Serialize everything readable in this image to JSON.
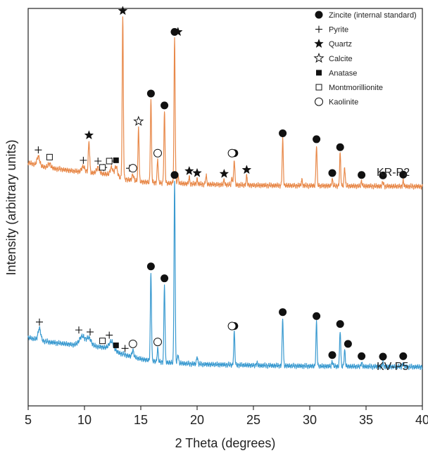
{
  "chart_data": {
    "type": "line",
    "title": "",
    "xlabel": "2 Theta (degrees)",
    "ylabel": "Intensity (arbitrary units)",
    "xlim": [
      5,
      40
    ],
    "ylim": [
      0,
      100
    ],
    "x_ticks": [
      "5",
      "10",
      "15",
      "20",
      "25",
      "30",
      "35",
      "40"
    ],
    "grid": false,
    "legend_placement": "top-right",
    "legend": [
      {
        "label": "Zincite (internal standard)",
        "marker": "filled-circle"
      },
      {
        "label": "Pyrite",
        "marker": "plus"
      },
      {
        "label": "Quartz",
        "marker": "star"
      },
      {
        "label": "Calcite",
        "marker": "open-star"
      },
      {
        "label": "Anatase",
        "marker": "filled-square"
      },
      {
        "label": "Montmorillionite",
        "marker": "open-square"
      },
      {
        "label": "Kaolinite",
        "marker": "open-circle"
      }
    ],
    "series": [
      {
        "name": "KR-P2",
        "color": "#e8894a",
        "baseline": [
          [
            5,
            61.2
          ],
          [
            6,
            60.4
          ],
          [
            7,
            59.8
          ],
          [
            8,
            59.5
          ],
          [
            9,
            59.1
          ],
          [
            10,
            58.8
          ],
          [
            11,
            58.6
          ],
          [
            12,
            58.3
          ],
          [
            13,
            57.6
          ],
          [
            14,
            56.8
          ],
          [
            15,
            56.4
          ],
          [
            16,
            56.2
          ],
          [
            17,
            56.1
          ],
          [
            18,
            56.0
          ],
          [
            20,
            55.8
          ],
          [
            25,
            55.5
          ],
          [
            30,
            55.4
          ],
          [
            35,
            55.3
          ],
          [
            40,
            55.2
          ]
        ],
        "peaks": [
          {
            "x": 5.9,
            "y": 62.8,
            "w": 0.12
          },
          {
            "x": 6.9,
            "y": 61.0,
            "w": 0.12
          },
          {
            "x": 9.9,
            "y": 60.2,
            "w": 0.15
          },
          {
            "x": 10.4,
            "y": 66.5,
            "w": 0.06
          },
          {
            "x": 11.2,
            "y": 60.0,
            "w": 0.12
          },
          {
            "x": 12.4,
            "y": 60.0,
            "w": 0.12
          },
          {
            "x": 12.8,
            "y": 60.2,
            "w": 0.12
          },
          {
            "x": 13.4,
            "y": 97.8,
            "w": 0.05
          },
          {
            "x": 14.3,
            "y": 58.2,
            "w": 0.08
          },
          {
            "x": 14.8,
            "y": 70.0,
            "w": 0.05
          },
          {
            "x": 15.9,
            "y": 77.0,
            "w": 0.05
          },
          {
            "x": 16.5,
            "y": 62.0,
            "w": 0.05
          },
          {
            "x": 17.1,
            "y": 74.0,
            "w": 0.05
          },
          {
            "x": 18.0,
            "y": 92.5,
            "w": 0.05
          },
          {
            "x": 18.3,
            "y": 58.2,
            "w": 0.05
          },
          {
            "x": 19.3,
            "y": 57.5,
            "w": 0.05
          },
          {
            "x": 20.0,
            "y": 57.0,
            "w": 0.05
          },
          {
            "x": 20.8,
            "y": 58.0,
            "w": 0.05
          },
          {
            "x": 22.4,
            "y": 56.8,
            "w": 0.05
          },
          {
            "x": 23.1,
            "y": 57.4,
            "w": 0.05
          },
          {
            "x": 23.3,
            "y": 62.0,
            "w": 0.05
          },
          {
            "x": 24.4,
            "y": 57.8,
            "w": 0.05
          },
          {
            "x": 27.6,
            "y": 67.0,
            "w": 0.05
          },
          {
            "x": 29.3,
            "y": 56.8,
            "w": 0.05
          },
          {
            "x": 30.6,
            "y": 65.5,
            "w": 0.05
          },
          {
            "x": 32.0,
            "y": 57.0,
            "w": 0.05
          },
          {
            "x": 32.7,
            "y": 63.5,
            "w": 0.05
          },
          {
            "x": 33.1,
            "y": 60.0,
            "w": 0.05
          },
          {
            "x": 34.6,
            "y": 56.5,
            "w": 0.05
          },
          {
            "x": 36.5,
            "y": 56.4,
            "w": 0.05
          },
          {
            "x": 38.3,
            "y": 56.6,
            "w": 0.05
          }
        ]
      },
      {
        "name": "KV-P5",
        "color": "#3a9ad0",
        "baseline": [
          [
            5,
            17.2
          ],
          [
            6,
            16.5
          ],
          [
            7,
            16.0
          ],
          [
            8,
            15.7
          ],
          [
            9,
            15.4
          ],
          [
            10,
            15.2
          ],
          [
            11,
            15.0
          ],
          [
            12,
            14.6
          ],
          [
            13,
            13.4
          ],
          [
            14,
            12.5
          ],
          [
            15,
            11.8
          ],
          [
            16,
            11.3
          ],
          [
            17,
            11.0
          ],
          [
            18,
            10.8
          ],
          [
            20,
            10.5
          ],
          [
            25,
            10.2
          ],
          [
            30,
            10.0
          ],
          [
            35,
            9.9
          ],
          [
            40,
            9.8
          ]
        ],
        "peaks": [
          {
            "x": 6.0,
            "y": 19.5,
            "w": 0.12
          },
          {
            "x": 9.8,
            "y": 17.5,
            "w": 0.25
          },
          {
            "x": 10.4,
            "y": 17.0,
            "w": 0.2
          },
          {
            "x": 12.4,
            "y": 16.2,
            "w": 0.2
          },
          {
            "x": 14.3,
            "y": 14.0,
            "w": 0.08
          },
          {
            "x": 15.9,
            "y": 33.5,
            "w": 0.05
          },
          {
            "x": 16.5,
            "y": 14.5,
            "w": 0.05
          },
          {
            "x": 17.1,
            "y": 30.5,
            "w": 0.05
          },
          {
            "x": 18.0,
            "y": 56.5,
            "w": 0.05
          },
          {
            "x": 18.3,
            "y": 13.0,
            "w": 0.05
          },
          {
            "x": 20.0,
            "y": 12.5,
            "w": 0.05
          },
          {
            "x": 23.3,
            "y": 18.5,
            "w": 0.05
          },
          {
            "x": 25.3,
            "y": 10.8,
            "w": 0.05
          },
          {
            "x": 27.6,
            "y": 22.0,
            "w": 0.05
          },
          {
            "x": 30.6,
            "y": 21.0,
            "w": 0.05
          },
          {
            "x": 32.0,
            "y": 11.2,
            "w": 0.05
          },
          {
            "x": 32.7,
            "y": 19.0,
            "w": 0.05
          },
          {
            "x": 33.1,
            "y": 14.0,
            "w": 0.05
          },
          {
            "x": 34.6,
            "y": 10.9,
            "w": 0.05
          },
          {
            "x": 36.5,
            "y": 10.8,
            "w": 0.05
          },
          {
            "x": 38.3,
            "y": 10.9,
            "w": 0.05
          }
        ]
      }
    ],
    "annotations": [
      {
        "series": "KR-P2",
        "marker": "filled-circle",
        "x": [
          15.9,
          17.1,
          18.0,
          23.3,
          27.6,
          30.6,
          32.0,
          32.7,
          34.6,
          36.5,
          38.3
        ]
      },
      {
        "series": "KR-P2",
        "marker": "plus",
        "x": [
          5.9,
          9.9,
          11.2,
          11.7,
          12.4,
          14.0
        ]
      },
      {
        "series": "KR-P2",
        "marker": "star",
        "x": [
          10.4,
          13.4,
          18.3,
          19.3,
          20.0,
          22.4,
          24.4
        ]
      },
      {
        "series": "KR-P2",
        "marker": "open-star",
        "x": [
          14.8
        ]
      },
      {
        "series": "KR-P2",
        "marker": "filled-square",
        "x": [
          12.8
        ]
      },
      {
        "series": "KR-P2",
        "marker": "open-square",
        "x": [
          6.9,
          11.6,
          12.2
        ]
      },
      {
        "series": "KR-P2",
        "marker": "open-circle",
        "x": [
          14.3,
          16.5,
          23.1
        ]
      },
      {
        "series": "KV-P5",
        "marker": "filled-circle",
        "x": [
          15.9,
          17.1,
          18.0,
          23.3,
          27.6,
          30.6,
          32.0,
          32.7,
          33.4,
          34.6,
          36.5,
          38.3
        ]
      },
      {
        "series": "KV-P5",
        "marker": "plus",
        "x": [
          6.0,
          9.5,
          10.5,
          12.2,
          13.6
        ]
      },
      {
        "series": "KV-P5",
        "marker": "filled-square",
        "x": [
          12.8
        ]
      },
      {
        "series": "KV-P5",
        "marker": "open-square",
        "x": [
          11.6
        ]
      },
      {
        "series": "KV-P5",
        "marker": "open-circle",
        "x": [
          14.3,
          16.5,
          23.1
        ]
      }
    ]
  }
}
